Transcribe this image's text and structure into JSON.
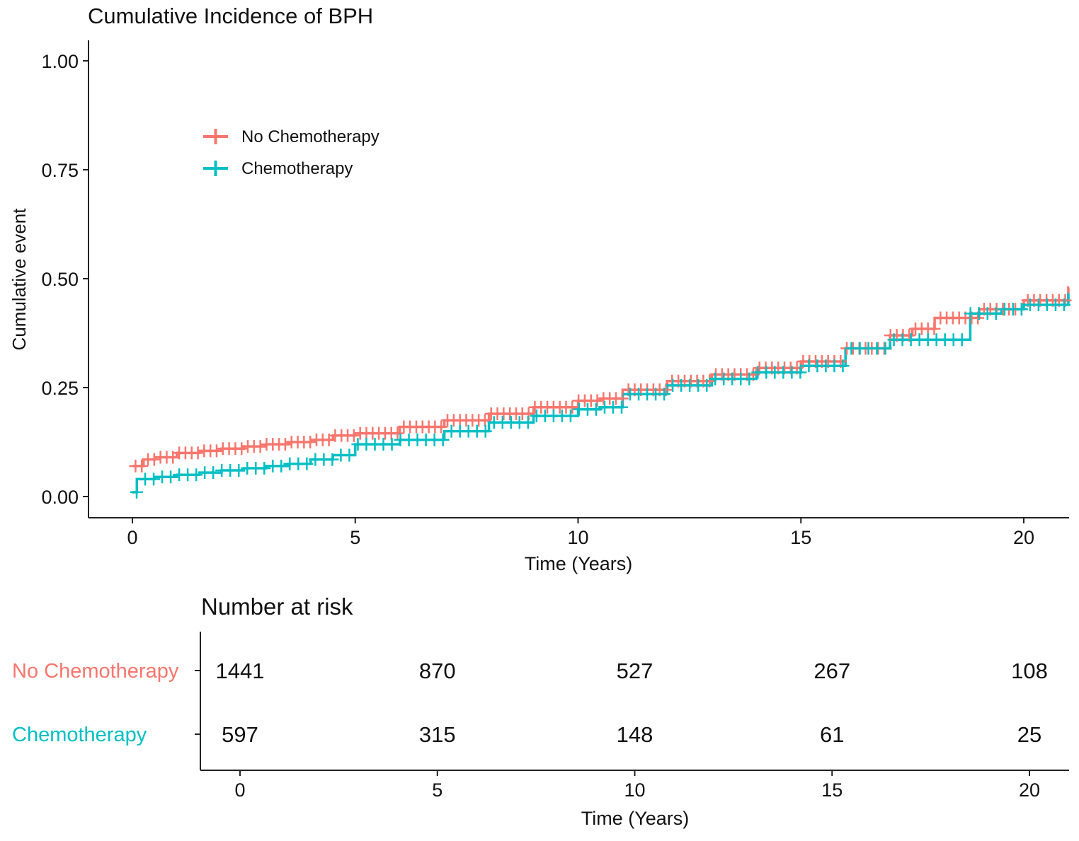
{
  "chart_data": [
    {
      "type": "line",
      "subtype": "step",
      "title": "Cumulative Incidence of BPH",
      "xlabel": "Time (Years)",
      "ylabel": "Cumulative event",
      "xlim": [
        -1,
        21
      ],
      "ylim": [
        -0.05,
        1.05
      ],
      "x_ticks": [
        "0",
        "5",
        "10",
        "15",
        "20"
      ],
      "y_ticks": [
        "0.00",
        "0.25",
        "0.50",
        "0.75",
        "1.00"
      ],
      "grid": false,
      "legend_position": "top-left",
      "series": [
        {
          "name": "No Chemotherapy",
          "color": "#F8766D",
          "x": [
            0,
            0.25,
            0.5,
            1,
            1.5,
            2,
            2.5,
            3,
            3.5,
            4,
            4.5,
            5,
            6,
            7,
            8,
            9,
            10,
            10.5,
            11,
            12,
            13,
            14,
            15,
            16,
            17,
            17.5,
            18,
            19,
            20,
            21
          ],
          "y": [
            0.07,
            0.085,
            0.09,
            0.1,
            0.105,
            0.11,
            0.115,
            0.12,
            0.125,
            0.13,
            0.14,
            0.145,
            0.16,
            0.175,
            0.19,
            0.205,
            0.22,
            0.225,
            0.245,
            0.265,
            0.28,
            0.295,
            0.31,
            0.34,
            0.37,
            0.385,
            0.41,
            0.43,
            0.45,
            0.48
          ]
        },
        {
          "name": "Chemotherapy",
          "color": "#00BFC4",
          "x": [
            0,
            0.1,
            0.5,
            1,
            1.5,
            2,
            2.5,
            3,
            3.5,
            4,
            4.5,
            5,
            6,
            7,
            8,
            9,
            10,
            10.5,
            11,
            12,
            13,
            14,
            15,
            15.5,
            16,
            17,
            18,
            18.8,
            19.5,
            20,
            21
          ],
          "y": [
            0.01,
            0.04,
            0.045,
            0.05,
            0.055,
            0.06,
            0.065,
            0.07,
            0.075,
            0.085,
            0.095,
            0.12,
            0.13,
            0.15,
            0.17,
            0.185,
            0.2,
            0.205,
            0.235,
            0.255,
            0.27,
            0.285,
            0.3,
            0.3,
            0.34,
            0.36,
            0.36,
            0.42,
            0.43,
            0.44,
            0.465
          ]
        }
      ]
    },
    {
      "type": "table",
      "title": "Number at risk",
      "xlabel": "Time (Years)",
      "x_ticks": [
        "0",
        "5",
        "10",
        "15",
        "20"
      ],
      "columns": [
        0,
        5,
        10,
        15,
        20
      ],
      "xlim": [
        -1,
        21
      ],
      "rows": [
        {
          "label": "No Chemotherapy",
          "color": "#F8766D",
          "values": [
            "1441",
            "870",
            "527",
            "267",
            "108"
          ]
        },
        {
          "label": "Chemotherapy",
          "color": "#00BFC4",
          "values": [
            "597",
            "315",
            "148",
            "61",
            "25"
          ]
        }
      ]
    }
  ]
}
